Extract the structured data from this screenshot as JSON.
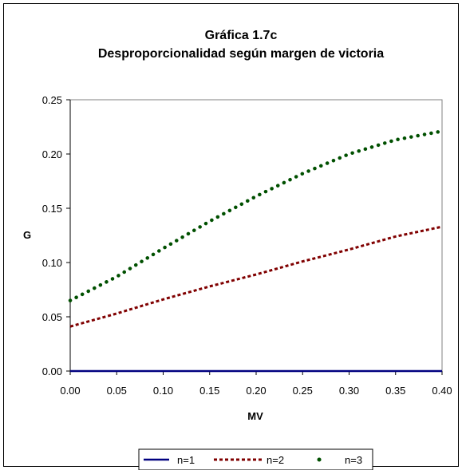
{
  "chart_data": {
    "type": "line",
    "title": "Gráfica 1.7c",
    "subtitle": "Desproporcionalidad según margen de victoria",
    "xlabel": "MV",
    "ylabel": "G",
    "xlim": [
      0.0,
      0.4
    ],
    "ylim": [
      0.0,
      0.25
    ],
    "x_ticks": [
      "0.00",
      "0.05",
      "0.10",
      "0.15",
      "0.20",
      "0.25",
      "0.30",
      "0.35",
      "0.40"
    ],
    "y_ticks": [
      "0.00",
      "0.05",
      "0.10",
      "0.15",
      "0.20",
      "0.25"
    ],
    "grid": false,
    "legend_position": "bottom",
    "x": [
      0.0,
      0.05,
      0.1,
      0.15,
      0.2,
      0.25,
      0.3,
      0.35,
      0.4
    ],
    "series": [
      {
        "name": "n=1",
        "style": "solid",
        "color": "#000080",
        "values": [
          0.0,
          0.0,
          0.0,
          0.0,
          0.0,
          0.0,
          0.0,
          0.0,
          0.0
        ]
      },
      {
        "name": "n=2",
        "style": "dashed",
        "color": "#800000",
        "values": [
          0.041,
          0.053,
          0.066,
          0.078,
          0.089,
          0.101,
          0.112,
          0.124,
          0.133
        ]
      },
      {
        "name": "n=3",
        "style": "dotted",
        "color": "#005000",
        "values": [
          0.065,
          0.087,
          0.113,
          0.138,
          0.161,
          0.182,
          0.2,
          0.213,
          0.221
        ]
      }
    ]
  }
}
